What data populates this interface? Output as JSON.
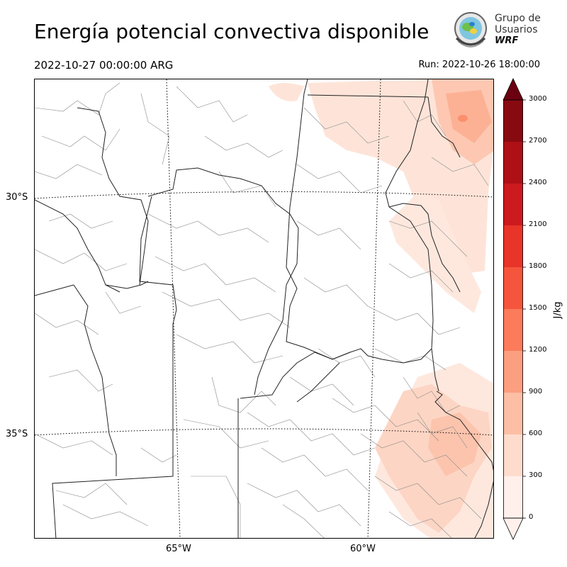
{
  "header": {
    "title": "Energía potencial convectiva disponible",
    "valid_time": "2022-10-27 00:00:00 ARG",
    "run_label": "Run: 2022-10-26 18:00:00"
  },
  "logo": {
    "line1": "Grupo de",
    "line2": "Usuarios",
    "line3": "WRF",
    "icon": "globe-seal-icon"
  },
  "map": {
    "lat_labels": [
      "30°S",
      "35°S"
    ],
    "lon_labels": [
      "65°W",
      "60°W"
    ]
  },
  "colorbar": {
    "unit": "J/kg",
    "ticks": [
      "0",
      "300",
      "600",
      "900",
      "1200",
      "1500",
      "1800",
      "2100",
      "2400",
      "2700",
      "3000"
    ],
    "colors": [
      "#fff0eb",
      "#fedccd",
      "#fcbfa6",
      "#fc9e80",
      "#fb7b5b",
      "#f5553c",
      "#e83429",
      "#cc1a1f",
      "#ae1016",
      "#870a11",
      "#6b0010"
    ],
    "extend": "both"
  }
}
